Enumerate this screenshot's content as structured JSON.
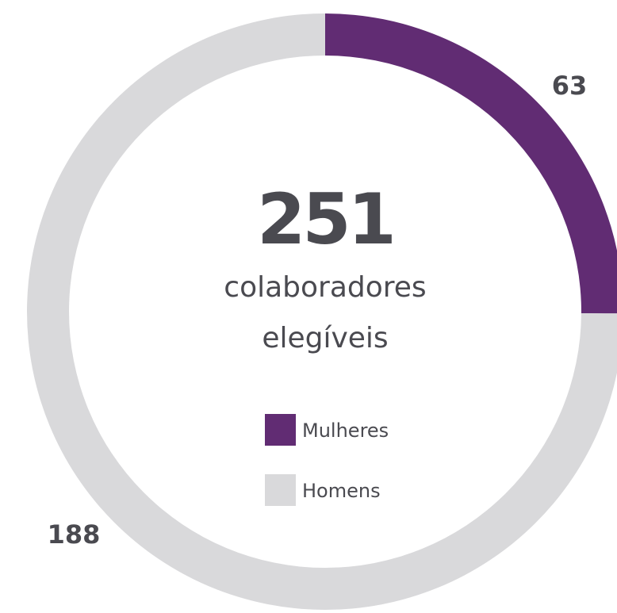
{
  "chart_data": {
    "type": "donut",
    "total": 251,
    "center_text": [
      "colaboradores",
      "elegíveis"
    ],
    "categories": [
      "Mulheres",
      "Homens"
    ],
    "values": [
      63,
      188
    ],
    "colors": [
      "#612c73",
      "#d9d9db"
    ],
    "legend": "center"
  }
}
